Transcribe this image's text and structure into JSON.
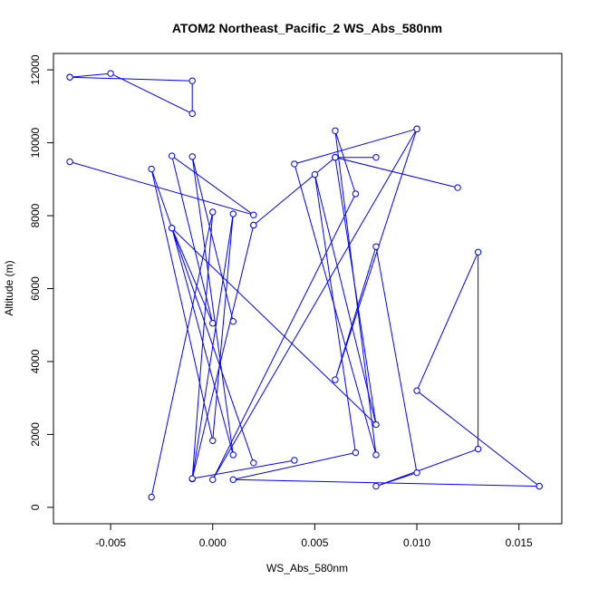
{
  "chart_data": {
    "type": "line",
    "title": "ATOM2 Northeast_Pacific_2 WS_Abs_580nm",
    "xlabel": "WS_Abs_580nm",
    "ylabel": "Altitude (m)",
    "xlim": [
      -0.0078,
      0.0171
    ],
    "ylim": [
      -450,
      12450
    ],
    "x_ticks": [
      -0.005,
      0.0,
      0.005,
      0.01,
      0.015
    ],
    "x_tick_labels": [
      "-0.005",
      "0.000",
      "0.005",
      "0.010",
      "0.015"
    ],
    "y_ticks": [
      0,
      2000,
      4000,
      6000,
      8000,
      10000,
      12000
    ],
    "y_tick_labels": [
      "0",
      "2000",
      "4000",
      "6000",
      "8000",
      "10000",
      "12000"
    ],
    "grid": false,
    "line_color": "#0000ff",
    "marker": "open-circle",
    "series": [
      {
        "points": [
          {
            "x": -0.007,
            "y": 11800
          },
          {
            "x": -0.005,
            "y": 11900
          },
          {
            "x": -0.001,
            "y": 10800
          },
          {
            "x": -0.001,
            "y": 11700
          },
          {
            "x": -0.007,
            "y": 11800
          }
        ]
      },
      {
        "points": [
          {
            "x": 0.016,
            "y": 580
          },
          {
            "x": 0.01,
            "y": 3200
          },
          {
            "x": 0.013,
            "y": 7000
          },
          {
            "x": 0.013,
            "y": 1600
          },
          {
            "x": 0.008,
            "y": 580
          },
          {
            "x": 0.01,
            "y": 950
          },
          {
            "x": 0.008,
            "y": 7150
          },
          {
            "x": 0.006,
            "y": 3500
          },
          {
            "x": 0.01,
            "y": 10380
          },
          {
            "x": 0.0,
            "y": 760
          },
          {
            "x": 0.007,
            "y": 8600
          },
          {
            "x": 0.006,
            "y": 10330
          },
          {
            "x": 0.008,
            "y": 1440
          },
          {
            "x": 0.004,
            "y": 9420
          },
          {
            "x": 0.01,
            "y": 10380
          }
        ]
      },
      {
        "points": [
          {
            "x": -0.007,
            "y": 9480
          },
          {
            "x": 0.002,
            "y": 8020
          },
          {
            "x": -0.002,
            "y": 9640
          },
          {
            "x": 0.0,
            "y": 5050
          },
          {
            "x": -0.002,
            "y": 7660
          },
          {
            "x": 0.008,
            "y": 2270
          },
          {
            "x": 0.005,
            "y": 9130
          },
          {
            "x": 0.007,
            "y": 1500
          },
          {
            "x": 0.001,
            "y": 760
          },
          {
            "x": 0.016,
            "y": 580
          }
        ]
      },
      {
        "points": [
          {
            "x": -0.003,
            "y": 280
          },
          {
            "x": 0.0,
            "y": 8100
          },
          {
            "x": -0.001,
            "y": 780
          },
          {
            "x": 0.001,
            "y": 8050
          },
          {
            "x": 0.0,
            "y": 1830
          },
          {
            "x": -0.003,
            "y": 9280
          },
          {
            "x": 0.002,
            "y": 1220
          },
          {
            "x": -0.002,
            "y": 7660
          },
          {
            "x": 0.001,
            "y": 1440
          },
          {
            "x": -0.001,
            "y": 9620
          },
          {
            "x": 0.001,
            "y": 5100
          }
        ]
      },
      {
        "points": [
          {
            "x": 0.004,
            "y": 1290
          },
          {
            "x": -0.001,
            "y": 790
          },
          {
            "x": 0.002,
            "y": 7740
          },
          {
            "x": 0.002,
            "y": 7740
          },
          {
            "x": 0.006,
            "y": 9600
          },
          {
            "x": 0.008,
            "y": 9600
          },
          {
            "x": 0.006,
            "y": 9600
          },
          {
            "x": 0.012,
            "y": 8770
          },
          {
            "x": 0.006,
            "y": 9600
          },
          {
            "x": 0.008,
            "y": 2270
          }
        ]
      }
    ]
  }
}
